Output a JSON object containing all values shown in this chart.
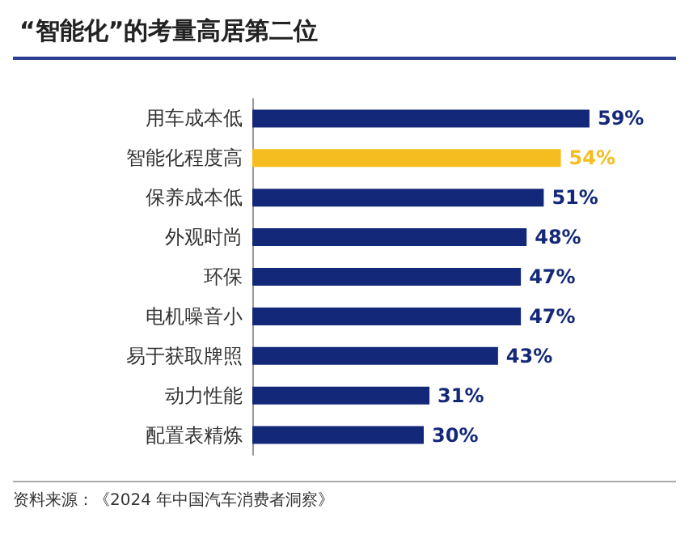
{
  "chart_data": {
    "type": "bar",
    "orientation": "horizontal",
    "title": "“智能化”的考量高居第二位",
    "categories": [
      "用车成本低",
      "智能化程度高",
      "保养成本低",
      "外观时尚",
      "环保",
      "电机噪音小",
      "易于获取牌照",
      "动力性能",
      "配置表精炼"
    ],
    "values": [
      59,
      54,
      51,
      48,
      47,
      47,
      43,
      31,
      30
    ],
    "colors": [
      "#14287a",
      "#f5bd1f",
      "#14287a",
      "#14287a",
      "#14287a",
      "#14287a",
      "#14287a",
      "#14287a",
      "#14287a"
    ],
    "value_labels": [
      "59%",
      "54%",
      "51%",
      "48%",
      "47%",
      "47%",
      "43%",
      "31%",
      "30%"
    ],
    "annotations": [
      "资料来源：《2024 年中国汽车消费者洞察》"
    ]
  }
}
